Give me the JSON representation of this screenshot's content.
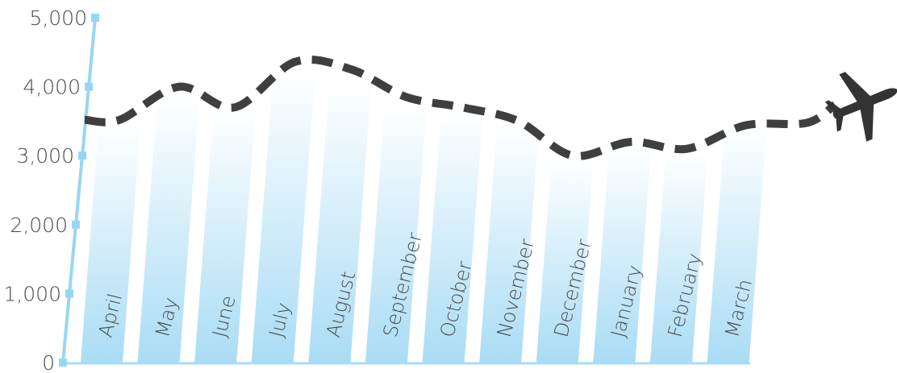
{
  "chart_data": {
    "type": "bar",
    "categories": [
      "April",
      "May",
      "June",
      "July",
      "August",
      "September",
      "October",
      "November",
      "December",
      "January",
      "February",
      "March"
    ],
    "values": [
      3450,
      3850,
      3650,
      4200,
      4050,
      3750,
      3650,
      3450,
      2950,
      3150,
      3050,
      3400
    ],
    "line_values": [
      3520,
      4000,
      3700,
      4360,
      4250,
      3850,
      3700,
      3500,
      3000,
      3200,
      3100,
      3440
    ],
    "yticks": [
      "0",
      "1,000",
      "2,000",
      "3,000",
      "4,000",
      "5,000"
    ],
    "ylim": [
      0,
      5000
    ],
    "title": "",
    "xlabel": "",
    "ylabel": "",
    "colors": {
      "bar_top": "#ffffff",
      "bar_bottom": "#a9dcf5",
      "axis": "#97d6f3",
      "line": "#3f3f3f",
      "plane": "#333333"
    },
    "icons": {
      "end_marker": "airplane-icon"
    }
  }
}
